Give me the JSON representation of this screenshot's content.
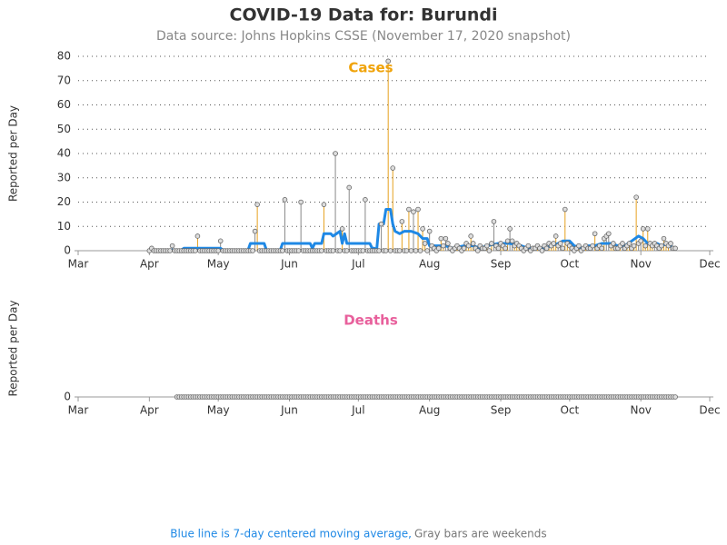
{
  "header": {
    "title": "COVID-19 Data for: Burundi",
    "subtitle": "Data source: Johns Hopkins CSSE (November 17, 2020 snapshot)"
  },
  "footnote": {
    "average": "Blue line is 7-day centered moving average,",
    "weekends": "Gray bars are weekends"
  },
  "chart_data": [
    {
      "type": "needle",
      "title": "Cases",
      "title_color": "#f0a30a",
      "ylabel": "Reported per Day",
      "color": "#e6a11f",
      "weekend_color": "#888888",
      "xlim": [
        0,
        275
      ],
      "xticks": [
        {
          "value": 0,
          "label": "Mar"
        },
        {
          "value": 31,
          "label": "Apr"
        },
        {
          "value": 61,
          "label": "May"
        },
        {
          "value": 92,
          "label": "Jun"
        },
        {
          "value": 122,
          "label": "Jul"
        },
        {
          "value": 153,
          "label": "Aug"
        },
        {
          "value": 184,
          "label": "Sep"
        },
        {
          "value": 214,
          "label": "Oct"
        },
        {
          "value": 245,
          "label": "Nov"
        },
        {
          "value": 275,
          "label": "Dec"
        }
      ],
      "ylim": [
        0,
        80
      ],
      "yticks": [
        0,
        10,
        20,
        30,
        40,
        50,
        60,
        70,
        80
      ],
      "grid": true,
      "x": [
        31,
        32,
        33,
        34,
        35,
        36,
        37,
        38,
        39,
        40,
        41,
        42,
        43,
        44,
        45,
        46,
        47,
        48,
        49,
        50,
        51,
        52,
        53,
        54,
        55,
        56,
        57,
        58,
        59,
        60,
        61,
        62,
        63,
        64,
        65,
        66,
        67,
        68,
        69,
        70,
        71,
        72,
        73,
        74,
        75,
        76,
        77,
        78,
        79,
        80,
        81,
        82,
        83,
        84,
        85,
        86,
        87,
        88,
        89,
        90,
        91,
        92,
        93,
        94,
        95,
        96,
        97,
        98,
        99,
        100,
        101,
        102,
        103,
        104,
        105,
        106,
        107,
        108,
        109,
        110,
        111,
        112,
        113,
        114,
        115,
        116,
        117,
        118,
        119,
        120,
        121,
        122,
        123,
        124,
        125,
        126,
        127,
        128,
        129,
        130,
        131,
        132,
        133,
        134,
        135,
        136,
        137,
        138,
        139,
        140,
        141,
        142,
        143,
        144,
        145,
        146,
        147,
        148,
        149,
        150,
        151,
        152,
        153,
        154,
        155,
        156,
        157,
        158,
        159,
        160,
        161,
        162,
        163,
        164,
        165,
        166,
        167,
        168,
        169,
        170,
        171,
        172,
        173,
        174,
        175,
        176,
        177,
        178,
        179,
        180,
        181,
        182,
        183,
        184,
        185,
        186,
        187,
        188,
        189,
        190,
        191,
        192,
        193,
        194,
        195,
        196,
        197,
        198,
        199,
        200,
        201,
        202,
        203,
        204,
        205,
        206,
        207,
        208,
        209,
        210,
        211,
        212,
        213,
        214,
        215,
        216,
        217,
        218,
        219,
        220,
        221,
        222,
        223,
        224,
        225,
        226,
        227,
        228,
        229,
        230,
        231,
        232,
        233,
        234,
        235,
        236,
        237,
        238,
        239,
        240,
        241,
        242,
        243,
        244,
        245,
        246,
        247,
        248,
        249,
        250,
        251,
        252,
        253,
        254,
        255,
        256,
        257,
        258,
        259,
        260
      ],
      "values": [
        0,
        1,
        0,
        0,
        0,
        0,
        0,
        0,
        0,
        0,
        2,
        0,
        0,
        0,
        0,
        0,
        0,
        0,
        0,
        0,
        0,
        6,
        0,
        0,
        0,
        0,
        0,
        0,
        0,
        0,
        0,
        4,
        0,
        0,
        0,
        0,
        0,
        0,
        0,
        0,
        0,
        0,
        0,
        0,
        0,
        0,
        8,
        19,
        0,
        0,
        0,
        0,
        0,
        0,
        0,
        0,
        0,
        0,
        0,
        21,
        0,
        0,
        0,
        0,
        0,
        0,
        20,
        0,
        0,
        0,
        0,
        0,
        0,
        0,
        0,
        0,
        19,
        0,
        0,
        0,
        0,
        40,
        0,
        0,
        9,
        0,
        0,
        26,
        0,
        0,
        0,
        0,
        0,
        0,
        21,
        0,
        0,
        0,
        0,
        0,
        0,
        11,
        0,
        0,
        78,
        0,
        34,
        0,
        0,
        0,
        12,
        0,
        0,
        17,
        0,
        16,
        0,
        17,
        0,
        9,
        3,
        0,
        8,
        2,
        1,
        0,
        1,
        5,
        2,
        5,
        3,
        1,
        0,
        1,
        2,
        1,
        0,
        1,
        3,
        2,
        6,
        3,
        1,
        0,
        2,
        1,
        1,
        2,
        0,
        3,
        12,
        2,
        1,
        3,
        2,
        1,
        4,
        9,
        4,
        2,
        3,
        2,
        1,
        0,
        1,
        2,
        0,
        1,
        1,
        2,
        1,
        0,
        2,
        1,
        3,
        2,
        3,
        6,
        2,
        3,
        1,
        17,
        3,
        2,
        1,
        0,
        1,
        2,
        0,
        1,
        2,
        1,
        1,
        2,
        7,
        1,
        2,
        1,
        5,
        6,
        7,
        2,
        3,
        1,
        1,
        2,
        3,
        1,
        2,
        3,
        1,
        2,
        22,
        3,
        4,
        9,
        2,
        9,
        3,
        2,
        3,
        2,
        1,
        2,
        5,
        3,
        2,
        3,
        1,
        1
      ],
      "avg": {
        "color": "#1e88e5",
        "x": [
          31,
          45,
          46,
          52,
          62,
          63,
          74,
          75,
          81,
          82,
          88,
          89,
          101,
          102,
          103,
          106,
          107,
          110,
          111,
          114,
          115,
          116,
          117,
          119,
          127,
          128,
          129,
          130,
          131,
          133,
          134,
          136,
          137,
          138,
          140,
          142,
          145,
          148,
          150,
          152,
          153,
          158,
          160,
          163,
          168,
          172,
          175,
          178,
          183,
          188,
          193,
          196,
          203,
          206,
          209,
          211,
          214,
          216,
          219,
          222,
          225,
          228,
          232,
          235,
          238,
          241,
          244,
          246,
          248,
          252,
          254,
          257,
          259
        ],
        "values": [
          0.3,
          0.3,
          1,
          1,
          1,
          0.3,
          0.3,
          3,
          3,
          0.3,
          0.3,
          3,
          3,
          1,
          3,
          3,
          7,
          7,
          6,
          8,
          3,
          7,
          3,
          3,
          3,
          1,
          1,
          0.3,
          11,
          11,
          17,
          17,
          11,
          8,
          7,
          8,
          8,
          7,
          5,
          5,
          2,
          2,
          2,
          1,
          2,
          2,
          1,
          2,
          3,
          3,
          2,
          1,
          1,
          2,
          3,
          4,
          4,
          2,
          1,
          2,
          2,
          3,
          3,
          2,
          2,
          4,
          6,
          5,
          3,
          3,
          2,
          3,
          1
        ]
      }
    },
    {
      "type": "needle",
      "title": "Deaths",
      "title_color": "#e8609c",
      "ylabel": "Reported per Day",
      "color": "#e6a11f",
      "weekend_color": "#888888",
      "xlim": [
        0,
        275
      ],
      "xticks": [
        {
          "value": 0,
          "label": "Mar"
        },
        {
          "value": 31,
          "label": "Apr"
        },
        {
          "value": 61,
          "label": "May"
        },
        {
          "value": 92,
          "label": "Jun"
        },
        {
          "value": 122,
          "label": "Jul"
        },
        {
          "value": 153,
          "label": "Aug"
        },
        {
          "value": 184,
          "label": "Sep"
        },
        {
          "value": 214,
          "label": "Oct"
        },
        {
          "value": 245,
          "label": "Nov"
        },
        {
          "value": 275,
          "label": "Dec"
        }
      ],
      "ylim": [
        0,
        1
      ],
      "yticks": [
        0
      ],
      "grid": true,
      "x": [
        43,
        44,
        45,
        46,
        47,
        48,
        49,
        50,
        51,
        52,
        53,
        54,
        55,
        56,
        57,
        58,
        59,
        60,
        61,
        62,
        63,
        64,
        65,
        66,
        67,
        68,
        69,
        70,
        71,
        72,
        73,
        74,
        75,
        76,
        77,
        78,
        79,
        80,
        81,
        82,
        83,
        84,
        85,
        86,
        87,
        88,
        89,
        90,
        91,
        92,
        93,
        94,
        95,
        96,
        97,
        98,
        99,
        100,
        101,
        102,
        103,
        104,
        105,
        106,
        107,
        108,
        109,
        110,
        111,
        112,
        113,
        114,
        115,
        116,
        117,
        118,
        119,
        120,
        121,
        122,
        123,
        124,
        125,
        126,
        127,
        128,
        129,
        130,
        131,
        132,
        133,
        134,
        135,
        136,
        137,
        138,
        139,
        140,
        141,
        142,
        143,
        144,
        145,
        146,
        147,
        148,
        149,
        150,
        151,
        152,
        153,
        154,
        155,
        156,
        157,
        158,
        159,
        160,
        161,
        162,
        163,
        164,
        165,
        166,
        167,
        168,
        169,
        170,
        171,
        172,
        173,
        174,
        175,
        176,
        177,
        178,
        179,
        180,
        181,
        182,
        183,
        184,
        185,
        186,
        187,
        188,
        189,
        190,
        191,
        192,
        193,
        194,
        195,
        196,
        197,
        198,
        199,
        200,
        201,
        202,
        203,
        204,
        205,
        206,
        207,
        208,
        209,
        210,
        211,
        212,
        213,
        214,
        215,
        216,
        217,
        218,
        219,
        220,
        221,
        222,
        223,
        224,
        225,
        226,
        227,
        228,
        229,
        230,
        231,
        232,
        233,
        234,
        235,
        236,
        237,
        238,
        239,
        240,
        241,
        242,
        243,
        244,
        245,
        246,
        247,
        248,
        249,
        250,
        251,
        252,
        253,
        254,
        255,
        256,
        257,
        258,
        259,
        260
      ],
      "values": [
        0,
        0,
        0,
        0,
        0,
        0,
        0,
        0,
        0,
        0,
        0,
        0,
        0,
        0,
        0,
        0,
        0,
        0,
        0,
        0,
        0,
        0,
        0,
        0,
        0,
        0,
        0,
        0,
        0,
        0,
        0,
        0,
        0,
        0,
        0,
        0,
        0,
        0,
        0,
        0,
        0,
        0,
        0,
        0,
        0,
        0,
        0,
        0,
        0,
        0,
        0,
        0,
        0,
        0,
        0,
        0,
        0,
        0,
        0,
        0,
        0,
        0,
        0,
        0,
        0,
        0,
        0,
        0,
        0,
        0,
        0,
        0,
        0,
        0,
        0,
        0,
        0,
        0,
        0,
        0,
        0,
        0,
        0,
        0,
        0,
        0,
        0,
        0,
        0,
        0,
        0,
        0,
        0,
        0,
        0,
        0,
        0,
        0,
        0,
        0,
        0,
        0,
        0,
        0,
        0,
        0,
        0,
        0,
        0,
        0,
        0,
        0,
        0,
        0,
        0,
        0,
        0,
        0,
        0,
        0,
        0,
        0,
        0,
        0,
        0,
        0,
        0,
        0,
        0,
        0,
        0,
        0,
        0,
        0,
        0,
        0,
        0,
        0,
        0,
        0,
        0,
        0,
        0,
        0,
        0,
        0,
        0,
        0,
        0,
        0,
        0,
        0,
        0,
        0,
        0,
        0,
        0,
        0,
        0,
        0,
        0,
        0,
        0,
        0,
        0,
        0,
        0,
        0,
        0,
        0,
        0,
        0,
        0,
        0,
        0,
        0,
        0,
        0,
        0,
        0,
        0,
        0,
        0,
        0,
        0,
        0,
        0,
        0,
        0,
        0,
        0,
        0,
        0,
        0,
        0,
        0,
        0,
        0,
        0,
        0,
        0,
        0,
        0,
        0,
        0,
        0,
        0,
        0,
        0,
        0,
        0,
        0,
        0,
        0,
        0,
        0,
        0,
        0
      ],
      "avg": {
        "color": "#1e88e5",
        "x": [
          43,
          260
        ],
        "values": [
          0,
          0
        ]
      }
    }
  ]
}
